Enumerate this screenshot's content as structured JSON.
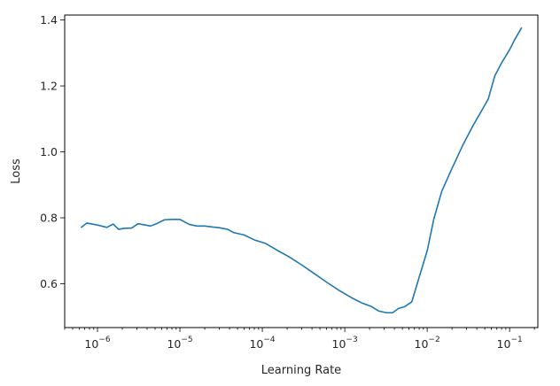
{
  "chart_data": {
    "type": "line",
    "title": "",
    "xlabel": "Learning Rate",
    "ylabel": "Loss",
    "xscale": "log",
    "xlim": [
      4e-07,
      0.22
    ],
    "ylim": [
      0.467,
      1.415
    ],
    "grid": false,
    "line_color": "#1f77b4",
    "x_ticks": [
      {
        "base": "10",
        "exp": "−6",
        "value": 1e-06
      },
      {
        "base": "10",
        "exp": "−5",
        "value": 1e-05
      },
      {
        "base": "10",
        "exp": "−4",
        "value": 0.0001
      },
      {
        "base": "10",
        "exp": "−3",
        "value": 0.001
      },
      {
        "base": "10",
        "exp": "−2",
        "value": 0.01
      },
      {
        "base": "10",
        "exp": "−1",
        "value": 0.1
      }
    ],
    "y_ticks": [
      {
        "label": "0.6",
        "value": 0.6
      },
      {
        "label": "0.8",
        "value": 0.8
      },
      {
        "label": "1.0",
        "value": 1.0
      },
      {
        "label": "1.2",
        "value": 1.2
      },
      {
        "label": "1.4",
        "value": 1.4
      }
    ],
    "series": [
      {
        "x": [
          6.3e-07,
          7.4e-07,
          1e-06,
          1.3e-06,
          1.55e-06,
          1.8e-06,
          2.1e-06,
          2.6e-06,
          3.1e-06,
          3.8e-06,
          4.4e-06,
          5.3e-06,
          6.5e-06,
          8e-06,
          1e-05,
          1.3e-05,
          1.6e-05,
          2e-05,
          2.5e-05,
          3e-05,
          3.8e-05,
          4.5e-05,
          6e-05,
          8e-05,
          0.00011,
          0.00015,
          0.00021,
          0.0003,
          0.00042,
          0.0006,
          0.00085,
          0.0012,
          0.0016,
          0.0021,
          0.0026,
          0.0032,
          0.0038,
          0.0045,
          0.0053,
          0.0065,
          0.008,
          0.01,
          0.012,
          0.015,
          0.02,
          0.027,
          0.036,
          0.047,
          0.055,
          0.066,
          0.08,
          0.1,
          0.115,
          0.14
        ],
        "y": [
          0.77,
          0.784,
          0.778,
          0.771,
          0.781,
          0.765,
          0.768,
          0.769,
          0.782,
          0.778,
          0.775,
          0.783,
          0.794,
          0.795,
          0.795,
          0.78,
          0.775,
          0.775,
          0.772,
          0.77,
          0.765,
          0.755,
          0.748,
          0.733,
          0.722,
          0.702,
          0.682,
          0.657,
          0.632,
          0.605,
          0.58,
          0.558,
          0.542,
          0.531,
          0.517,
          0.512,
          0.512,
          0.525,
          0.53,
          0.545,
          0.62,
          0.7,
          0.795,
          0.88,
          0.95,
          1.02,
          1.08,
          1.13,
          1.16,
          1.23,
          1.27,
          1.31,
          1.34,
          1.377
        ]
      }
    ]
  }
}
